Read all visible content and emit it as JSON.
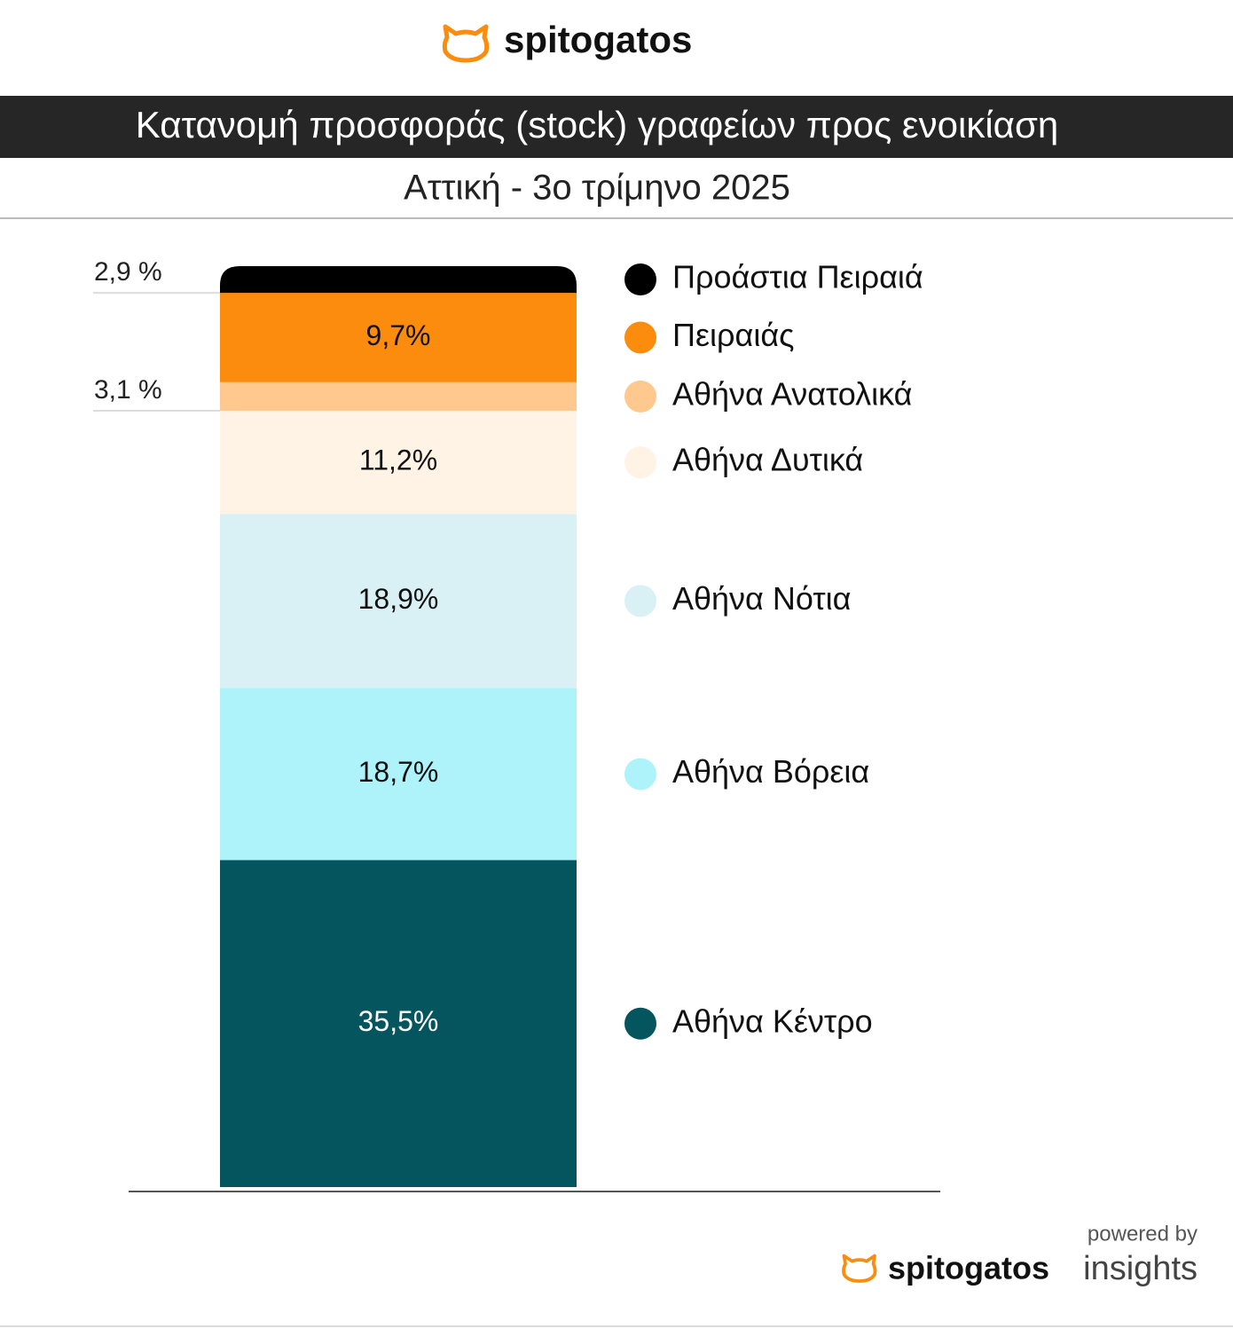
{
  "brand": "spitogatos",
  "chart_data": {
    "type": "bar",
    "stacked": true,
    "title": "Κατανομή προσφοράς (stock) γραφείων  προς ενοικίαση",
    "subtitle": "Αττική - 3ο τρίμηνο 2025",
    "series": [
      {
        "name": "Αθήνα Κέντρο",
        "color": "#05555e",
        "values": [
          35.5
        ],
        "value_labels": [
          "35,5%"
        ]
      },
      {
        "name": "Αθήνα Βόρεια",
        "color": "#adf3f9",
        "values": [
          18.7
        ],
        "value_labels": [
          "18,7%"
        ]
      },
      {
        "name": "Αθήνα Νότια",
        "color": "#d9f1f4",
        "values": [
          18.9
        ],
        "value_labels": [
          "18,9%"
        ]
      },
      {
        "name": "Αθήνα Δυτικά",
        "color": "#fff3e6",
        "values": [
          11.2
        ],
        "value_labels": [
          "11,2%"
        ]
      },
      {
        "name": "Αθήνα Ανατολικά",
        "color": "#fec88e",
        "values": [
          3.1
        ],
        "value_labels": [
          "3,1 %"
        ]
      },
      {
        "name": "Πειραιάς",
        "color": "#fb8c0e",
        "values": [
          9.7
        ],
        "value_labels": [
          "9,7%"
        ]
      },
      {
        "name": "Προάστια Πειραιά",
        "color": "#000000",
        "values": [
          2.9
        ],
        "value_labels": [
          "2,9 %"
        ]
      }
    ]
  },
  "footer": {
    "powered_by": "powered by",
    "brand": "spitogatos",
    "product": "insights"
  }
}
